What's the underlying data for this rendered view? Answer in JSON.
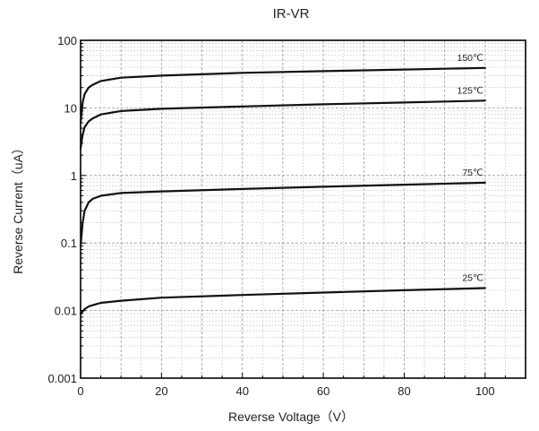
{
  "chart_data": {
    "type": "line",
    "title": "IR-VR",
    "xlabel": "Reverse Voltage（V）",
    "ylabel": "Reverse Current（uA）",
    "xlim": [
      0,
      110
    ],
    "ylim": [
      0.001,
      100
    ],
    "yscale": "log",
    "grid": true,
    "x_ticks": [
      0,
      20,
      40,
      60,
      80,
      100
    ],
    "x_tick_labels": [
      "0",
      "20",
      "40",
      "60",
      "80",
      "100"
    ],
    "y_ticks": [
      0.001,
      0.01,
      0.1,
      1,
      10,
      100
    ],
    "y_tick_labels": [
      "0.001",
      "0.01",
      "0.1",
      "1",
      "10",
      "100"
    ],
    "series": [
      {
        "name": "150℃",
        "x": [
          0,
          0.5,
          1,
          2,
          3,
          5,
          10,
          20,
          40,
          60,
          80,
          100
        ],
        "y": [
          6,
          12,
          16,
          20,
          22,
          25,
          28,
          30,
          33,
          35,
          37,
          39
        ]
      },
      {
        "name": "125℃",
        "x": [
          0,
          0.5,
          1,
          2,
          3,
          5,
          10,
          20,
          40,
          60,
          80,
          100
        ],
        "y": [
          2.5,
          4,
          5.2,
          6.3,
          7,
          8,
          9,
          9.7,
          10.5,
          11.3,
          12,
          12.8
        ]
      },
      {
        "name": "75℃",
        "x": [
          0,
          0.5,
          1,
          2,
          3,
          5,
          10,
          20,
          40,
          60,
          80,
          100
        ],
        "y": [
          0.09,
          0.2,
          0.3,
          0.4,
          0.45,
          0.5,
          0.55,
          0.58,
          0.63,
          0.68,
          0.73,
          0.78
        ]
      },
      {
        "name": "25℃",
        "x": [
          0,
          1,
          2,
          3,
          5,
          10,
          20,
          40,
          60,
          80,
          100
        ],
        "y": [
          0.009,
          0.0105,
          0.0115,
          0.012,
          0.013,
          0.014,
          0.0155,
          0.017,
          0.0185,
          0.02,
          0.0215
        ]
      }
    ]
  }
}
